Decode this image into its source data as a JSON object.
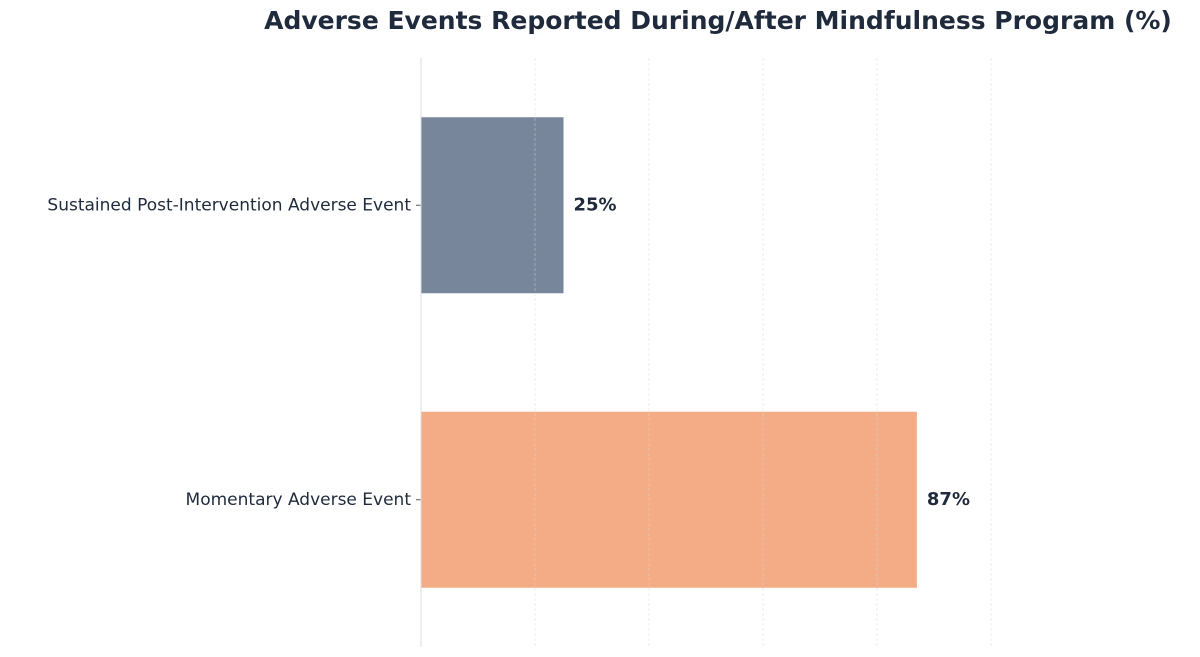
{
  "chart_data": {
    "type": "hbar",
    "title": "Adverse Events Reported During/After Mindfulness Program (%)",
    "categories": [
      "Sustained Post-Intervention Adverse Event",
      "Momentary Adverse Event"
    ],
    "values": [
      25,
      87
    ],
    "value_labels": [
      "25%",
      "87%"
    ],
    "colors": [
      "#77869b",
      "#f4ac86"
    ],
    "xlim": [
      0,
      100
    ],
    "xticks": [
      0,
      20,
      40,
      60,
      80,
      100
    ],
    "grid": true
  }
}
